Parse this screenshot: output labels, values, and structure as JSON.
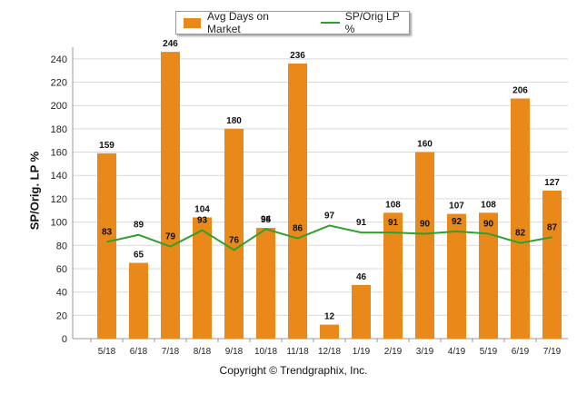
{
  "legend": {
    "bar_label": "Avg Days on Market",
    "line_label": "SP/Orig LP %"
  },
  "footer": "Copyright © Trendgraphix, Inc.",
  "colors": {
    "bar": "#e8891a",
    "line": "#2ea02e",
    "grid": "#d9d9d9"
  },
  "chart_data": {
    "type": "bar",
    "categories": [
      "5/18",
      "6/18",
      "7/18",
      "8/18",
      "9/18",
      "10/18",
      "11/18",
      "12/18",
      "1/19",
      "2/19",
      "3/19",
      "4/19",
      "5/19",
      "6/19",
      "7/19"
    ],
    "series": [
      {
        "name": "Avg Days on Market",
        "type": "bar",
        "values": [
          159,
          65,
          246,
          104,
          180,
          95,
          236,
          12,
          46,
          108,
          160,
          107,
          108,
          206,
          127
        ]
      },
      {
        "name": "SP/Orig LP %",
        "type": "line",
        "values": [
          83,
          89,
          79,
          93,
          76,
          94,
          86,
          97,
          91,
          91,
          90,
          92,
          90,
          82,
          87
        ]
      }
    ],
    "ylabel": "SP/Orig. LP %",
    "ylim": [
      0,
      250
    ],
    "yticks": [
      0,
      20,
      40,
      60,
      80,
      100,
      120,
      140,
      160,
      180,
      200,
      220,
      240
    ],
    "grid": true,
    "legend_position": "top-center"
  }
}
